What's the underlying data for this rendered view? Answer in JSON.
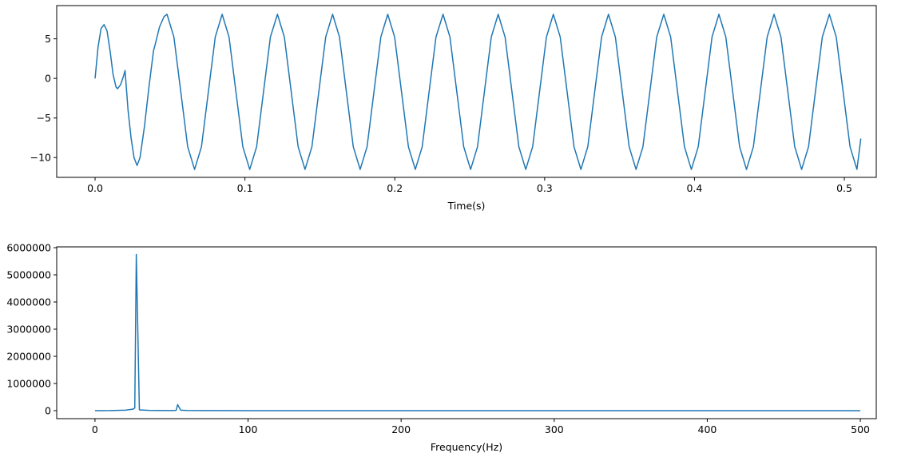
{
  "chart_data": [
    {
      "type": "line",
      "xlabel": "Time(s)",
      "color": "#1f77b4",
      "x": [
        0,
        0.002,
        0.004,
        0.006,
        0.008,
        0.01,
        0.012,
        0.014,
        0.015,
        0.017,
        0.019,
        0.02,
        0.022,
        0.024,
        0.026,
        0.028,
        0.03,
        0.033,
        0.036,
        0.039,
        0.04,
        0.043,
        0.046,
        0.048,
        0.0526,
        0.0572,
        0.0618,
        0.0664,
        0.071,
        0.0756,
        0.0802,
        0.0848,
        0.0894,
        0.094,
        0.0986,
        0.1032,
        0.1078,
        0.1124,
        0.117,
        0.1217,
        0.1263,
        0.1309,
        0.1355,
        0.1401,
        0.1447,
        0.1493,
        0.1539,
        0.1585,
        0.1631,
        0.1677,
        0.1723,
        0.1769,
        0.1815,
        0.1861,
        0.1907,
        0.1953,
        0.1999,
        0.2045,
        0.2091,
        0.2137,
        0.2183,
        0.2229,
        0.2275,
        0.2322,
        0.2368,
        0.2414,
        0.246,
        0.2506,
        0.2552,
        0.2598,
        0.2644,
        0.269,
        0.2736,
        0.2782,
        0.2828,
        0.2874,
        0.292,
        0.2966,
        0.3012,
        0.3058,
        0.3104,
        0.315,
        0.3196,
        0.3242,
        0.3288,
        0.3334,
        0.338,
        0.3426,
        0.3472,
        0.3518,
        0.3564,
        0.361,
        0.3656,
        0.3702,
        0.3748,
        0.3795,
        0.3841,
        0.3887,
        0.3933,
        0.3979,
        0.4025,
        0.4071,
        0.4117,
        0.4163,
        0.4209,
        0.4255,
        0.4301,
        0.4347,
        0.4393,
        0.4439,
        0.4485,
        0.4531,
        0.4577,
        0.4623,
        0.4669,
        0.4715,
        0.4761,
        0.4807,
        0.4853,
        0.49,
        0.4946,
        0.4992,
        0.5038,
        0.5084,
        0.511
      ],
      "values": [
        0,
        4,
        6.3,
        6.8,
        6,
        3.5,
        0.5,
        -1.1,
        -1.3,
        -0.8,
        0.3,
        1.0,
        -4,
        -7.5,
        -10,
        -11,
        -10,
        -6,
        -1,
        3.5,
        4.2,
        6.5,
        7.8,
        8.1,
        5.23,
        -1.7,
        -8.63,
        -11.5,
        -8.63,
        -1.7,
        5.23,
        8.1,
        5.23,
        -1.7,
        -8.63,
        -11.5,
        -8.63,
        -1.7,
        5.23,
        8.1,
        5.23,
        -1.7,
        -8.63,
        -11.5,
        -8.63,
        -1.7,
        5.23,
        8.1,
        5.23,
        -1.7,
        -8.63,
        -11.5,
        -8.63,
        -1.7,
        5.23,
        8.1,
        5.23,
        -1.7,
        -8.63,
        -11.5,
        -8.63,
        -1.7,
        5.23,
        8.1,
        5.23,
        -1.7,
        -8.63,
        -11.5,
        -8.63,
        -1.7,
        5.23,
        8.1,
        5.23,
        -1.7,
        -8.63,
        -11.5,
        -8.63,
        -1.7,
        5.23,
        8.1,
        5.23,
        -1.7,
        -8.63,
        -11.5,
        -8.63,
        -1.7,
        5.23,
        8.1,
        5.23,
        -1.7,
        -8.63,
        -11.5,
        -8.63,
        -1.7,
        5.23,
        8.1,
        5.23,
        -1.7,
        -8.63,
        -11.5,
        -8.63,
        -1.7,
        5.23,
        8.1,
        5.23,
        -1.7,
        -8.63,
        -11.5,
        -8.63,
        -1.7,
        5.23,
        8.1,
        5.23,
        -1.7,
        -8.63,
        -11.5,
        -8.63,
        -1.7,
        5.23,
        8.1,
        5.23,
        -1.7,
        -8.63,
        -11.5,
        -7.6
      ],
      "xlim": [
        -0.0256,
        0.5213
      ],
      "xticks": [
        {
          "value": 0,
          "label": "0.0"
        },
        0.1,
        0.2,
        0.3,
        0.4,
        0.5
      ],
      "ylim": [
        -12.5,
        9.2
      ],
      "yticks": [
        {
          "value": -10,
          "label": "−10"
        },
        {
          "value": -5,
          "label": "−5"
        },
        0,
        5
      ]
    },
    {
      "type": "line",
      "xlabel": "Frequency(Hz)",
      "color": "#1f77b4",
      "x": [
        0,
        10,
        20,
        25,
        26,
        27,
        29,
        35,
        50,
        53,
        54,
        56,
        60,
        80,
        100,
        200,
        300,
        400,
        500
      ],
      "values": [
        0,
        3000,
        20000,
        60000,
        100000,
        5750000,
        30000,
        10000,
        5000,
        10000,
        220000,
        20000,
        8000,
        3000,
        1500,
        500,
        300,
        200,
        100
      ],
      "xlim": [
        -25,
        510.4
      ],
      "xticks": [
        0,
        100,
        200,
        300,
        400,
        500
      ],
      "ylim": [
        -294000,
        6030000
      ],
      "yticks": [
        0,
        1000000,
        2000000,
        3000000,
        4000000,
        5000000,
        6000000
      ]
    }
  ]
}
